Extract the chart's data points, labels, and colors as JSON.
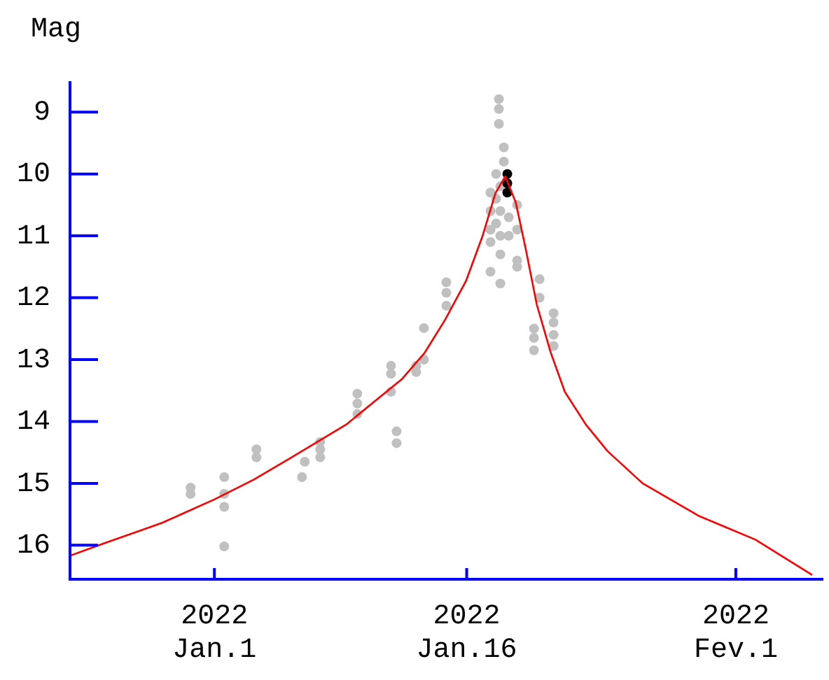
{
  "chart_data": {
    "type": "scatter",
    "ylabel": "Mag",
    "xlim": [
      "2021-12-23T10:00",
      "2022-02-06T05:00"
    ],
    "xticks": [
      {
        "value": "2022-01-01",
        "label": "2022\nJan.1"
      },
      {
        "value": "2022-01-16",
        "label": "2022\nJan.16"
      },
      {
        "value": "2022-02-01",
        "label": "2022\nFev.1"
      }
    ],
    "ylim": [
      16.55,
      8.5
    ],
    "yticks": [
      9,
      10,
      11,
      12,
      13,
      14,
      15,
      16
    ],
    "series": [
      {
        "type": "scatter",
        "marker": "circle",
        "color": "#c0c0c0",
        "x": [
          "2021-12-30T14:00",
          "2021-12-30T14:00",
          "2022-01-01T14:00",
          "2022-01-01T14:00",
          "2022-01-01T14:00",
          "2022-01-01T14:00",
          "2022-01-03T12:00",
          "2022-01-03T12:00",
          "2022-01-06T05:00",
          "2022-01-06T09:00",
          "2022-01-07T07:00",
          "2022-01-07T07:00",
          "2022-01-07T07:00",
          "2022-01-09T12:00",
          "2022-01-09T12:00",
          "2022-01-09T12:00",
          "2022-01-11T12:00",
          "2022-01-11T12:00",
          "2022-01-11T12:00",
          "2022-01-11T20:00",
          "2022-01-11T20:00",
          "2022-01-13T00:00",
          "2022-01-13T00:00",
          "2022-01-13T11:00",
          "2022-01-13T11:00",
          "2022-01-14T19:00",
          "2022-01-14T19:00",
          "2022-01-14T19:00",
          "2022-01-17T22:00",
          "2022-01-17T22:00",
          "2022-01-17T22:00",
          "2022-01-18T05:00",
          "2022-01-18T05:00",
          "2022-01-17T10:00",
          "2022-01-17T10:00",
          "2022-01-17T10:00",
          "2022-01-17T10:00",
          "2022-01-17T10:00",
          "2022-01-17T18:00",
          "2022-01-17T18:00",
          "2022-01-17T18:00",
          "2022-01-18T00:00",
          "2022-01-18T00:00",
          "2022-01-18T00:00",
          "2022-01-18T00:00",
          "2022-01-18T00:00",
          "2022-01-18T12:00",
          "2022-01-18T12:00",
          "2022-01-19T00:00",
          "2022-01-19T00:00",
          "2022-01-19T00:00",
          "2022-01-19T00:00",
          "2022-01-20T08:00",
          "2022-01-20T08:00",
          "2022-01-20T00:00",
          "2022-01-20T00:00",
          "2022-01-20T00:00",
          "2022-01-21T04:00",
          "2022-01-21T04:00",
          "2022-01-21T04:00",
          "2022-01-21T04:00"
        ],
        "values": [
          15.07,
          15.17,
          14.9,
          15.17,
          15.38,
          16.02,
          14.45,
          14.58,
          14.9,
          14.65,
          14.33,
          14.45,
          14.58,
          13.55,
          13.71,
          13.88,
          13.1,
          13.23,
          13.52,
          14.16,
          14.35,
          13.1,
          13.2,
          12.49,
          13.0,
          11.75,
          11.92,
          12.13,
          8.79,
          8.95,
          9.19,
          9.57,
          9.8,
          10.3,
          10.6,
          10.9,
          11.1,
          11.58,
          10.0,
          10.4,
          10.8,
          10.2,
          10.6,
          11.0,
          11.3,
          11.77,
          10.7,
          11.0,
          10.5,
          10.9,
          11.4,
          11.5,
          11.7,
          12.0,
          12.5,
          12.65,
          12.85,
          12.25,
          12.4,
          12.6,
          12.78
        ]
      },
      {
        "type": "scatter",
        "marker": "circle",
        "color": "#000000",
        "x": [
          "2022-01-18T10:00",
          "2022-01-18T10:00",
          "2022-01-18T10:00"
        ],
        "values": [
          10.0,
          10.15,
          10.3
        ]
      },
      {
        "type": "line",
        "marker": "none",
        "line_style": "solid",
        "color": "#ff0000",
        "x": [
          "2021-12-23T10:00",
          "2021-12-25T13:00",
          "2021-12-28T21:00",
          "2022-01-01T00:00",
          "2022-01-03T08:00",
          "2022-01-05T11:00",
          "2022-01-08T20:00",
          "2022-01-12T04:00",
          "2022-01-13T12:00",
          "2022-01-14T17:00",
          "2022-01-15T23:00",
          "2022-01-16T23:00",
          "2022-01-17T17:00",
          "2022-01-18T07:00",
          "2022-01-18T22:00",
          "2022-01-19T12:00",
          "2022-01-20T04:00",
          "2022-01-21T00:00",
          "2022-01-21T20:00",
          "2022-01-23T02:00",
          "2022-01-24T09:00",
          "2022-01-26T11:00",
          "2022-01-29T20:00",
          "2022-02-02T04:00",
          "2022-02-05T13:00"
        ],
        "values": [
          16.17,
          15.96,
          15.64,
          15.26,
          14.94,
          14.6,
          14.05,
          13.31,
          12.89,
          12.36,
          11.73,
          10.99,
          10.31,
          10.04,
          10.46,
          11.2,
          12.11,
          12.89,
          13.52,
          14.05,
          14.48,
          15.0,
          15.53,
          15.91,
          16.48
        ]
      }
    ]
  }
}
